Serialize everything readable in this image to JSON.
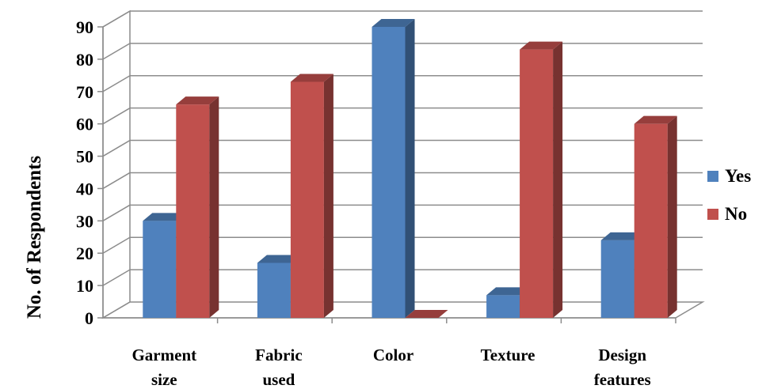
{
  "chart_data": {
    "type": "bar",
    "style": "3d-clustered-column",
    "title": "",
    "xlabel": "",
    "ylabel": "No. of Respondents",
    "ylim": [
      0,
      90
    ],
    "yticks": [
      0,
      10,
      20,
      30,
      40,
      50,
      60,
      70,
      80,
      90
    ],
    "grid": true,
    "legend_position": "right",
    "categories": [
      [
        "Garment",
        "size"
      ],
      [
        "Fabric",
        "used"
      ],
      [
        "Color"
      ],
      [
        "Texture"
      ],
      [
        "Design",
        "features"
      ]
    ],
    "series": [
      {
        "name": "Yes",
        "color": "#4f81bd",
        "values": [
          30,
          17,
          90,
          7,
          24
        ]
      },
      {
        "name": "No",
        "color": "#c0504d",
        "values": [
          66,
          73,
          0,
          83,
          60
        ]
      }
    ]
  }
}
